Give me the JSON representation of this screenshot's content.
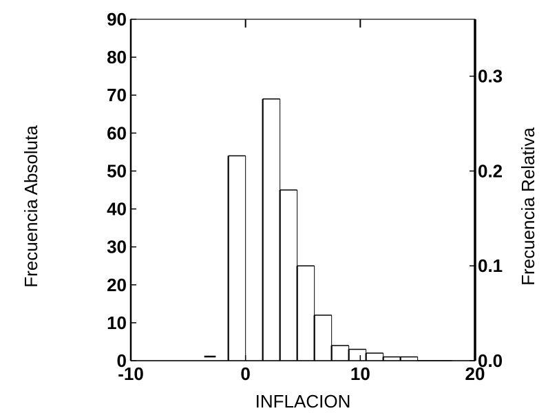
{
  "chart_data": {
    "type": "bar",
    "title": "",
    "xlabel": "INFLACION",
    "ylabel_left": "Frecuencia Absoluta",
    "ylabel_right": "Frecuencia Relativa",
    "xlim": [
      -10,
      20
    ],
    "ylim_left": [
      0,
      90
    ],
    "ylim_right": [
      0.0,
      0.36
    ],
    "x_ticks": [
      "-10",
      "0",
      "10",
      "20"
    ],
    "y_ticks_left": [
      "0",
      "10",
      "20",
      "30",
      "40",
      "50",
      "60",
      "70",
      "80",
      "90"
    ],
    "y_ticks_right": [
      "0.0",
      "0.1",
      "0.2",
      "0.3"
    ],
    "bin_width": 1.5,
    "bins": [
      {
        "x0": -1.5,
        "x1": 0.0,
        "value": 54
      },
      {
        "x0": 1.5,
        "x1": 3.0,
        "value": 69
      },
      {
        "x0": 3.0,
        "x1": 4.5,
        "value": 45
      },
      {
        "x0": 4.5,
        "x1": 6.0,
        "value": 25
      },
      {
        "x0": 6.0,
        "x1": 7.5,
        "value": 12
      },
      {
        "x0": 7.5,
        "x1": 9.0,
        "value": 4
      },
      {
        "x0": 9.0,
        "x1": 10.5,
        "value": 3
      },
      {
        "x0": 10.5,
        "x1": 12.0,
        "value": 2
      },
      {
        "x0": 12.0,
        "x1": 13.5,
        "value": 1
      },
      {
        "x0": 13.5,
        "x1": 15.0,
        "value": 1
      },
      {
        "x0": 15.0,
        "x1": 16.5,
        "value": 0
      },
      {
        "x0": 16.5,
        "x1": 18.0,
        "value": 0
      }
    ],
    "grid": false,
    "legend": "none"
  }
}
